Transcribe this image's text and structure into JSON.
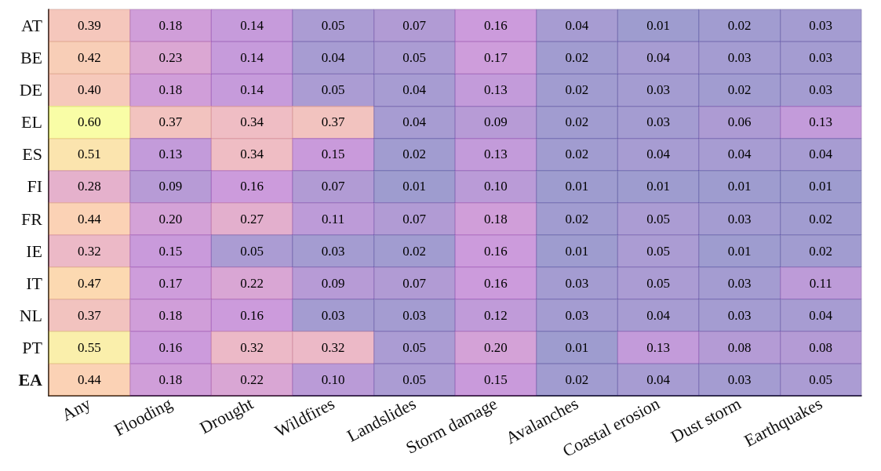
{
  "chart_data": {
    "type": "heatmap",
    "categories": [
      "Any",
      "Flooding",
      "Drought",
      "Wildfires",
      "Landslides",
      "Storm damage",
      "Avalanches",
      "Coastal erosion",
      "Dust storm",
      "Earthquakes"
    ],
    "y_categories": [
      "AT",
      "BE",
      "DE",
      "EL",
      "ES",
      "FI",
      "FR",
      "IE",
      "IT",
      "NL",
      "PT",
      "EA"
    ],
    "cells": [
      [
        0.39,
        0.18,
        0.14,
        0.05,
        0.07,
        0.16,
        0.04,
        0.01,
        0.02,
        0.03
      ],
      [
        0.42,
        0.23,
        0.14,
        0.04,
        0.05,
        0.17,
        0.02,
        0.04,
        0.03,
        0.03
      ],
      [
        0.4,
        0.18,
        0.14,
        0.05,
        0.04,
        0.13,
        0.02,
        0.03,
        0.02,
        0.03
      ],
      [
        0.6,
        0.37,
        0.34,
        0.37,
        0.04,
        0.09,
        0.02,
        0.03,
        0.06,
        0.13
      ],
      [
        0.51,
        0.13,
        0.34,
        0.15,
        0.02,
        0.13,
        0.02,
        0.04,
        0.04,
        0.04
      ],
      [
        0.28,
        0.09,
        0.16,
        0.07,
        0.01,
        0.1,
        0.01,
        0.01,
        0.01,
        0.01
      ],
      [
        0.44,
        0.2,
        0.27,
        0.11,
        0.07,
        0.18,
        0.02,
        0.05,
        0.03,
        0.02
      ],
      [
        0.32,
        0.15,
        0.05,
        0.03,
        0.02,
        0.16,
        0.01,
        0.05,
        0.01,
        0.02
      ],
      [
        0.47,
        0.17,
        0.22,
        0.09,
        0.07,
        0.16,
        0.03,
        0.05,
        0.03,
        0.11
      ],
      [
        0.37,
        0.18,
        0.16,
        0.03,
        0.03,
        0.12,
        0.03,
        0.04,
        0.03,
        0.04
      ],
      [
        0.55,
        0.16,
        0.32,
        0.32,
        0.05,
        0.2,
        0.01,
        0.13,
        0.08,
        0.08
      ],
      [
        0.44,
        0.18,
        0.22,
        0.1,
        0.05,
        0.15,
        0.02,
        0.04,
        0.03,
        0.05
      ]
    ],
    "cell_labels": [
      [
        "0.39",
        "0.18",
        "0.14",
        "0.05",
        "0.07",
        "0.16",
        "0.04",
        "0.01",
        "0.02",
        "0.03"
      ],
      [
        "0.42",
        "0.23",
        "0.14",
        "0.04",
        "0.05",
        "0.17",
        "0.02",
        "0.04",
        "0.03",
        "0.03"
      ],
      [
        "0.40",
        "0.18",
        "0.14",
        "0.05",
        "0.04",
        "0.13",
        "0.02",
        "0.03",
        "0.02",
        "0.03"
      ],
      [
        "0.60",
        "0.37",
        "0.34",
        "0.37",
        "0.04",
        "0.09",
        "0.02",
        "0.03",
        "0.06",
        "0.13"
      ],
      [
        "0.51",
        "0.13",
        "0.34",
        "0.15",
        "0.02",
        "0.13",
        "0.02",
        "0.04",
        "0.04",
        "0.04"
      ],
      [
        "0.28",
        "0.09",
        "0.16",
        "0.07",
        "0.01",
        "0.10",
        "0.01",
        "0.01",
        "0.01",
        "0.01"
      ],
      [
        "0.44",
        "0.20",
        "0.27",
        "0.11",
        "0.07",
        "0.18",
        "0.02",
        "0.05",
        "0.03",
        "0.02"
      ],
      [
        "0.32",
        "0.15",
        "0.05",
        "0.03",
        "0.02",
        "0.16",
        "0.01",
        "0.05",
        "0.01",
        "0.02"
      ],
      [
        "0.47",
        "0.17",
        "0.22",
        "0.09",
        "0.07",
        "0.16",
        "0.03",
        "0.05",
        "0.03",
        "0.11"
      ],
      [
        "0.37",
        "0.18",
        "0.16",
        "0.03",
        "0.03",
        "0.12",
        "0.03",
        "0.04",
        "0.03",
        "0.04"
      ],
      [
        "0.55",
        "0.16",
        "0.32",
        "0.32",
        "0.05",
        "0.20",
        "0.01",
        "0.13",
        "0.08",
        "0.08"
      ],
      [
        "0.44",
        "0.18",
        "0.22",
        "0.10",
        "0.05",
        "0.15",
        "0.02",
        "0.04",
        "0.03",
        "0.05"
      ]
    ],
    "grid": true
  }
}
